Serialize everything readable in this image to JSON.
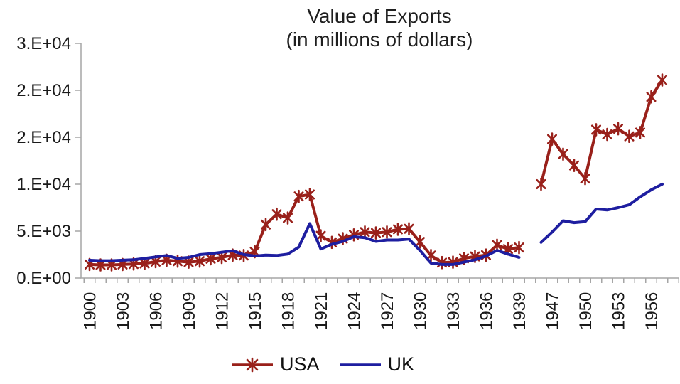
{
  "chart_data": {
    "type": "line",
    "title": "Value of Exports",
    "subtitle": "(in millions of dollars)",
    "background_color": "#ffffff",
    "grid": false,
    "y_axis": {
      "range": [
        0,
        25000
      ],
      "tick_values": [
        0,
        5000,
        10000,
        15000,
        20000,
        25000
      ],
      "tick_labels": [
        "0.E+00",
        "5.E+03",
        "1.E+04",
        "2.E+04",
        "2.E+04",
        "3.E+04"
      ]
    },
    "x_axis": {
      "categories": [
        1900,
        1901,
        1902,
        1903,
        1904,
        1905,
        1906,
        1907,
        1908,
        1909,
        1910,
        1911,
        1912,
        1913,
        1914,
        1915,
        1916,
        1917,
        1918,
        1919,
        1920,
        1921,
        1922,
        1923,
        1924,
        1925,
        1926,
        1927,
        1928,
        1929,
        1930,
        1931,
        1932,
        1933,
        1934,
        1935,
        1936,
        1937,
        1938,
        1939,
        1945,
        1946,
        1947,
        1948,
        1949,
        1950,
        1951,
        1952,
        1953,
        1954,
        1955,
        1956,
        1957,
        1958
      ],
      "label_every": 3,
      "labeled_ticks": [
        "1900",
        "1903",
        "1906",
        "1909",
        "1912",
        "1915",
        "1918",
        "1921",
        "1924",
        "1927",
        "1930",
        "1933",
        "1936",
        "1939",
        "1947",
        "1950",
        "1953",
        "1956"
      ],
      "label_rotation": -90,
      "note": "war years 1940-1944 omitted from axis; no data plotted 1940-1945"
    },
    "series": [
      {
        "name": "USA",
        "color": "#99201a",
        "marker": "star",
        "values": [
          1450,
          1400,
          1400,
          1450,
          1500,
          1550,
          1750,
          1900,
          1800,
          1700,
          1800,
          2050,
          2200,
          2450,
          2400,
          2800,
          5700,
          6800,
          6400,
          8700,
          8900,
          4500,
          3800,
          4200,
          4600,
          4900,
          4800,
          4900,
          5200,
          5250,
          3850,
          2400,
          1650,
          1700,
          2100,
          2300,
          2450,
          3500,
          3100,
          3250,
          null,
          10000,
          14800,
          13200,
          12000,
          10600,
          15800,
          15300,
          15900,
          15100,
          15500,
          19300,
          21100,
          null
        ]
      },
      {
        "name": "UK",
        "color": "#1e1ea0",
        "marker": "none",
        "values": [
          1900,
          1850,
          1850,
          1900,
          1950,
          2100,
          2250,
          2400,
          2100,
          2200,
          2500,
          2600,
          2750,
          2900,
          2500,
          2350,
          2450,
          2400,
          2550,
          3300,
          5800,
          3100,
          3600,
          3900,
          4400,
          4300,
          3900,
          4050,
          4050,
          4150,
          2950,
          1600,
          1450,
          1450,
          1700,
          1950,
          2350,
          2950,
          2550,
          2200,
          null,
          3800,
          4900,
          6100,
          5900,
          6000,
          7350,
          7250,
          7500,
          7800,
          8650,
          9400,
          10000,
          null
        ]
      }
    ],
    "legend": {
      "position": "bottom",
      "items": [
        "USA",
        "UK"
      ]
    }
  }
}
